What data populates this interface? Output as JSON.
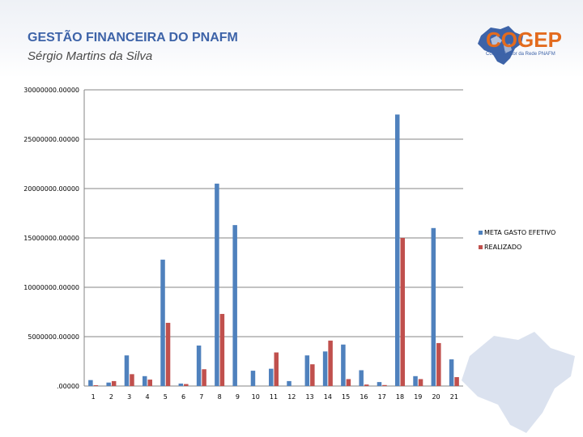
{
  "header": {
    "title": "GESTÃO FINANCEIRA DO PNAFM",
    "subtitle": "Sérgio Martins da Silva"
  },
  "logo": {
    "name": "COGEP",
    "tagline": "Comitê Gestor da Rede PNAFM",
    "brand_orange": "#e36b1e",
    "brand_blue": "#3d63a8"
  },
  "chart_data": {
    "type": "bar",
    "categories": [
      "1",
      "2",
      "3",
      "4",
      "5",
      "6",
      "7",
      "8",
      "9",
      "10",
      "11",
      "12",
      "13",
      "14",
      "15",
      "16",
      "17",
      "18",
      "19",
      "20",
      "21"
    ],
    "series": [
      {
        "name": "META GASTO EFETIVO",
        "color": "#4f81bd",
        "values": [
          600000,
          350000,
          3100000,
          1000000,
          12800000,
          250000,
          4100000,
          20500000,
          16300000,
          1550000,
          1750000,
          500000,
          3100000,
          3500000,
          4200000,
          1600000,
          400000,
          27500000,
          1000000,
          16000000,
          2700000
        ]
      },
      {
        "name": "REALIZADO",
        "color": "#c0504d",
        "values": [
          80000,
          500000,
          1200000,
          650000,
          6400000,
          200000,
          1700000,
          7300000,
          0,
          0,
          3400000,
          0,
          2200000,
          4600000,
          700000,
          150000,
          100000,
          15000000,
          700000,
          4350000,
          900000
        ]
      }
    ],
    "yticks": [
      "30000000.00000",
      "25000000.00000",
      "20000000.00000",
      "15000000.00000",
      "10000000.00000",
      "5000000.00000",
      ".00000"
    ],
    "ytick_values": [
      30000000,
      25000000,
      20000000,
      15000000,
      10000000,
      5000000,
      0
    ],
    "ylim": [
      0,
      30000000
    ],
    "grid": true,
    "legend": "right"
  }
}
